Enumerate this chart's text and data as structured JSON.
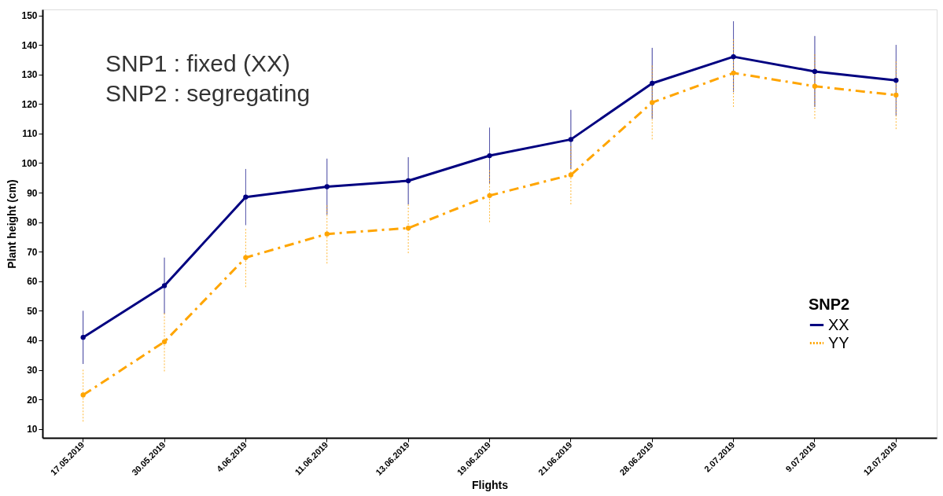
{
  "chart_data": {
    "type": "line",
    "xlabel": "Flights",
    "ylabel": "Plant height (cm)",
    "legend_title": "SNP2",
    "annotations": [
      "SNP1 : fixed (XX)",
      "SNP2 : segregating"
    ],
    "categories": [
      "17.05.2019",
      "30.05.2019",
      "4.06.2019",
      "11.06.2019",
      "13.06.2019",
      "19.06.2019",
      "21.06.2019",
      "28.06.2019",
      "2.07.2019",
      "9.07.2019",
      "12.07.2019"
    ],
    "series": [
      {
        "name": "XX",
        "color": "#000080",
        "line_style": "solid",
        "values": [
          41,
          58.5,
          88.5,
          92,
          94,
          102.5,
          108,
          127,
          136,
          131,
          128
        ],
        "errors": [
          9,
          9.5,
          9.5,
          9.5,
          8,
          9.5,
          10,
          12,
          12,
          12,
          12
        ]
      },
      {
        "name": "YY",
        "color": "#ffa500",
        "line_style": "dashed",
        "values": [
          21.5,
          39.5,
          68,
          76,
          78,
          89,
          96,
          120.5,
          130.5,
          126,
          123
        ],
        "errors": [
          9,
          10,
          10,
          10,
          8.5,
          9,
          10,
          12.5,
          11.5,
          11,
          11.5
        ]
      }
    ],
    "ylim": [
      7,
      152
    ],
    "yticks": [
      10,
      20,
      30,
      40,
      50,
      60,
      70,
      80,
      90,
      100,
      110,
      120,
      130,
      140,
      150
    ],
    "grid": false,
    "legend": "bottom right",
    "marker": "circle"
  }
}
